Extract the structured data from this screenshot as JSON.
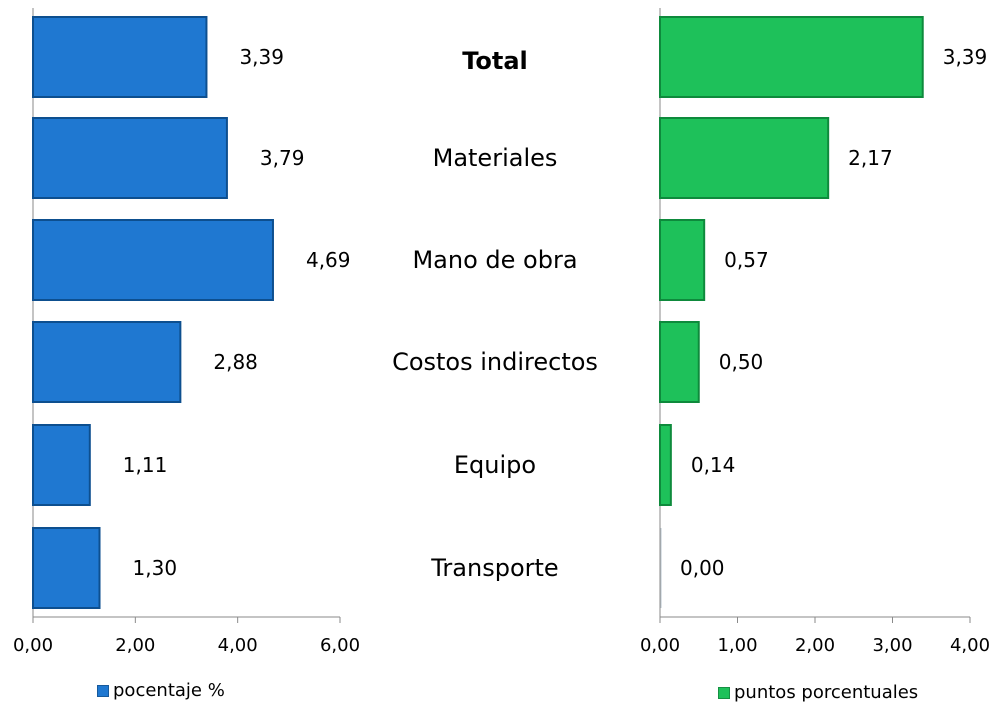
{
  "chart_data": {
    "type": "bar",
    "orientation": "horizontal",
    "categories": [
      "Total",
      "Materiales",
      "Mano de obra",
      "Costos indirectos",
      "Equipo",
      "Transporte"
    ],
    "category_bold": [
      "Total"
    ],
    "panels": [
      {
        "series_name": "pocentaje %",
        "values": [
          3.39,
          3.79,
          4.69,
          2.88,
          1.11,
          1.3
        ],
        "value_labels": [
          "3,39",
          "3,79",
          "4,69",
          "2,88",
          "1,11",
          "1,30"
        ],
        "xlim": [
          0,
          6
        ],
        "ticks": [
          0,
          2,
          4,
          6
        ],
        "tick_labels": [
          "0,00",
          "2,00",
          "4,00",
          "6,00"
        ],
        "color": "#1F78D1",
        "edge_color": "#0D4F8F"
      },
      {
        "series_name": "puntos porcentuales",
        "values": [
          3.39,
          2.17,
          0.57,
          0.5,
          0.14,
          0.0
        ],
        "value_labels": [
          "3,39",
          "2,17",
          "0,57",
          "0,50",
          "0,14",
          "0,00"
        ],
        "xlim": [
          0,
          4
        ],
        "ticks": [
          0,
          1,
          2,
          3,
          4
        ],
        "tick_labels": [
          "0,00",
          "1,00",
          "2,00",
          "3,00",
          "4,00"
        ],
        "color": "#1EC15A",
        "edge_color": "#0E8A3C"
      }
    ],
    "legend_position": "bottom"
  }
}
